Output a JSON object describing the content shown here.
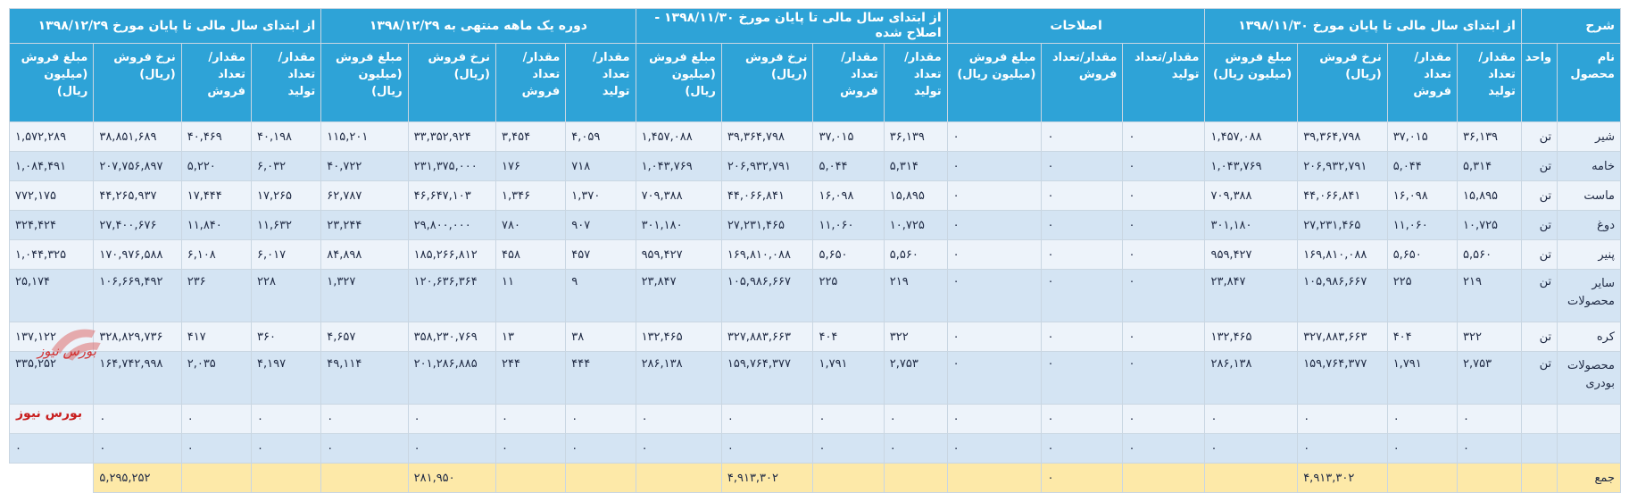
{
  "groups": {
    "col1": "شرح",
    "col2": "از ابتدای سال مالی تا پایان مورخ ۱۳۹۸/۱۱/۳۰",
    "col3": "اصلاحات",
    "col4": "از ابتدای سال مالی تا پایان مورخ ۱۳۹۸/۱۱/۳۰ - اصلاح شده",
    "col5": "دوره یک ماهه منتهی به ۱۳۹۸/۱۲/۲۹",
    "col6": "از ابتدای سال مالی تا پایان مورخ ۱۳۹۸/۱۲/۲۹"
  },
  "subheaders": {
    "name": "نام محصول",
    "unit": "واحد",
    "prod_qty": "مقدار/ تعداد تولید",
    "sales_qty": "مقدار/تعداد فروش",
    "rate": "نرخ فروش (ریال)",
    "amount": "مبلغ فروش (میلیون ریال)",
    "adj_prod": "مقدار/تعداد تولید",
    "adj_sales": "مقدار/تعداد فروش",
    "adj_amount": "مبلغ فروش (میلیون ریال)",
    "m_prod": "مقدار/ تعداد تولید",
    "m_sales": "مقدار/ تعداد فروش",
    "y_prod": "مقدار/ تعداد تولید",
    "y_sales": "مقدار/ تعداد فروش"
  },
  "rows": [
    {
      "name": "شیر",
      "unit": "تن",
      "v": [
        "۳۶,۱۳۹",
        "۳۷,۰۱۵",
        "۳۹,۳۶۴,۷۹۸",
        "۱,۴۵۷,۰۸۸",
        "۰",
        "۰",
        "۰",
        "۳۶,۱۳۹",
        "۳۷,۰۱۵",
        "۳۹,۳۶۴,۷۹۸",
        "۱,۴۵۷,۰۸۸",
        "۴,۰۵۹",
        "۳,۴۵۴",
        "۳۳,۳۵۲,۹۲۴",
        "۱۱۵,۲۰۱",
        "۴۰,۱۹۸",
        "۴۰,۴۶۹",
        "۳۸,۸۵۱,۶۸۹",
        "۱,۵۷۲,۲۸۹"
      ]
    },
    {
      "name": "خامه",
      "unit": "تن",
      "v": [
        "۵,۳۱۴",
        "۵,۰۴۴",
        "۲۰۶,۹۳۲,۷۹۱",
        "۱,۰۴۳,۷۶۹",
        "۰",
        "۰",
        "۰",
        "۵,۳۱۴",
        "۵,۰۴۴",
        "۲۰۶,۹۳۲,۷۹۱",
        "۱,۰۴۳,۷۶۹",
        "۷۱۸",
        "۱۷۶",
        "۲۳۱,۳۷۵,۰۰۰",
        "۴۰,۷۲۲",
        "۶,۰۳۲",
        "۵,۲۲۰",
        "۲۰۷,۷۵۶,۸۹۷",
        "۱,۰۸۴,۴۹۱"
      ]
    },
    {
      "name": "ماست",
      "unit": "تن",
      "v": [
        "۱۵,۸۹۵",
        "۱۶,۰۹۸",
        "۴۴,۰۶۶,۸۴۱",
        "۷۰۹,۳۸۸",
        "۰",
        "۰",
        "۰",
        "۱۵,۸۹۵",
        "۱۶,۰۹۸",
        "۴۴,۰۶۶,۸۴۱",
        "۷۰۹,۳۸۸",
        "۱,۳۷۰",
        "۱,۳۴۶",
        "۴۶,۶۴۷,۱۰۳",
        "۶۲,۷۸۷",
        "۱۷,۲۶۵",
        "۱۷,۴۴۴",
        "۴۴,۲۶۵,۹۳۷",
        "۷۷۲,۱۷۵"
      ]
    },
    {
      "name": "دوغ",
      "unit": "تن",
      "v": [
        "۱۰,۷۲۵",
        "۱۱,۰۶۰",
        "۲۷,۲۳۱,۴۶۵",
        "۳۰۱,۱۸۰",
        "۰",
        "۰",
        "۰",
        "۱۰,۷۲۵",
        "۱۱,۰۶۰",
        "۲۷,۲۳۱,۴۶۵",
        "۳۰۱,۱۸۰",
        "۹۰۷",
        "۷۸۰",
        "۲۹,۸۰۰,۰۰۰",
        "۲۳,۲۴۴",
        "۱۱,۶۳۲",
        "۱۱,۸۴۰",
        "۲۷,۴۰۰,۶۷۶",
        "۳۲۴,۴۲۴"
      ]
    },
    {
      "name": "پنیر",
      "unit": "تن",
      "v": [
        "۵,۵۶۰",
        "۵,۶۵۰",
        "۱۶۹,۸۱۰,۰۸۸",
        "۹۵۹,۴۲۷",
        "۰",
        "۰",
        "۰",
        "۵,۵۶۰",
        "۵,۶۵۰",
        "۱۶۹,۸۱۰,۰۸۸",
        "۹۵۹,۴۲۷",
        "۴۵۷",
        "۴۵۸",
        "۱۸۵,۲۶۶,۸۱۲",
        "۸۴,۸۹۸",
        "۶,۰۱۷",
        "۶,۱۰۸",
        "۱۷۰,۹۷۶,۵۸۸",
        "۱,۰۴۴,۳۲۵"
      ]
    },
    {
      "name": "سایر محصولات",
      "unit": "تن",
      "v": [
        "۲۱۹",
        "۲۲۵",
        "۱۰۵,۹۸۶,۶۶۷",
        "۲۳,۸۴۷",
        "۰",
        "۰",
        "۰",
        "۲۱۹",
        "۲۲۵",
        "۱۰۵,۹۸۶,۶۶۷",
        "۲۳,۸۴۷",
        "۹",
        "۱۱",
        "۱۲۰,۶۳۶,۳۶۴",
        "۱,۳۲۷",
        "۲۲۸",
        "۲۳۶",
        "۱۰۶,۶۶۹,۴۹۲",
        "۲۵,۱۷۴"
      ]
    },
    {
      "name": "کره",
      "unit": "تن",
      "v": [
        "۳۲۲",
        "۴۰۴",
        "۳۲۷,۸۸۳,۶۶۳",
        "۱۳۲,۴۶۵",
        "۰",
        "۰",
        "۰",
        "۳۲۲",
        "۴۰۴",
        "۳۲۷,۸۸۳,۶۶۳",
        "۱۳۲,۴۶۵",
        "۳۸",
        "۱۳",
        "۳۵۸,۲۳۰,۷۶۹",
        "۴,۶۵۷",
        "۳۶۰",
        "۴۱۷",
        "۳۲۸,۸۲۹,۷۳۶",
        "۱۳۷,۱۲۲"
      ]
    },
    {
      "name": "محصولات بودری",
      "unit": "تن",
      "v": [
        "۲,۷۵۳",
        "۱,۷۹۱",
        "۱۵۹,۷۶۴,۳۷۷",
        "۲۸۶,۱۳۸",
        "۰",
        "۰",
        "۰",
        "۲,۷۵۳",
        "۱,۷۹۱",
        "۱۵۹,۷۶۴,۳۷۷",
        "۲۸۶,۱۳۸",
        "۴۴۴",
        "۲۴۴",
        "۲۰۱,۲۸۶,۸۸۵",
        "۴۹,۱۱۴",
        "۴,۱۹۷",
        "۲,۰۳۵",
        "۱۶۴,۷۴۲,۹۹۸",
        "۳۳۵,۲۵۲"
      ]
    },
    {
      "name": "",
      "unit": "",
      "v": [
        "۰",
        "۰",
        "۰",
        "۰",
        "۰",
        "۰",
        "۰",
        "۰",
        "۰",
        "۰",
        "۰",
        "۰",
        "۰",
        "۰",
        "۰",
        "۰",
        "۰",
        "۰",
        "۰"
      ]
    },
    {
      "name": "",
      "unit": "",
      "v": [
        "۰",
        "۰",
        "۰",
        "۰",
        "۰",
        "۰",
        "۰",
        "۰",
        "۰",
        "۰",
        "۰",
        "۰",
        "۰",
        "۰",
        "۰",
        "۰",
        "۰",
        "۰",
        "۰"
      ]
    }
  ],
  "total": {
    "label": "جمع",
    "v": [
      "",
      "",
      "",
      "۴,۹۱۳,۳۰۲",
      "",
      "",
      "۰",
      "",
      "",
      "",
      "۴,۹۱۳,۳۰۲",
      "",
      "",
      "",
      "۲۸۱,۹۵۰",
      "",
      "",
      "",
      "۵,۲۹۵,۲۵۲"
    ]
  },
  "watermark": "بورس نیوز",
  "logo": "بورس نیوز"
}
